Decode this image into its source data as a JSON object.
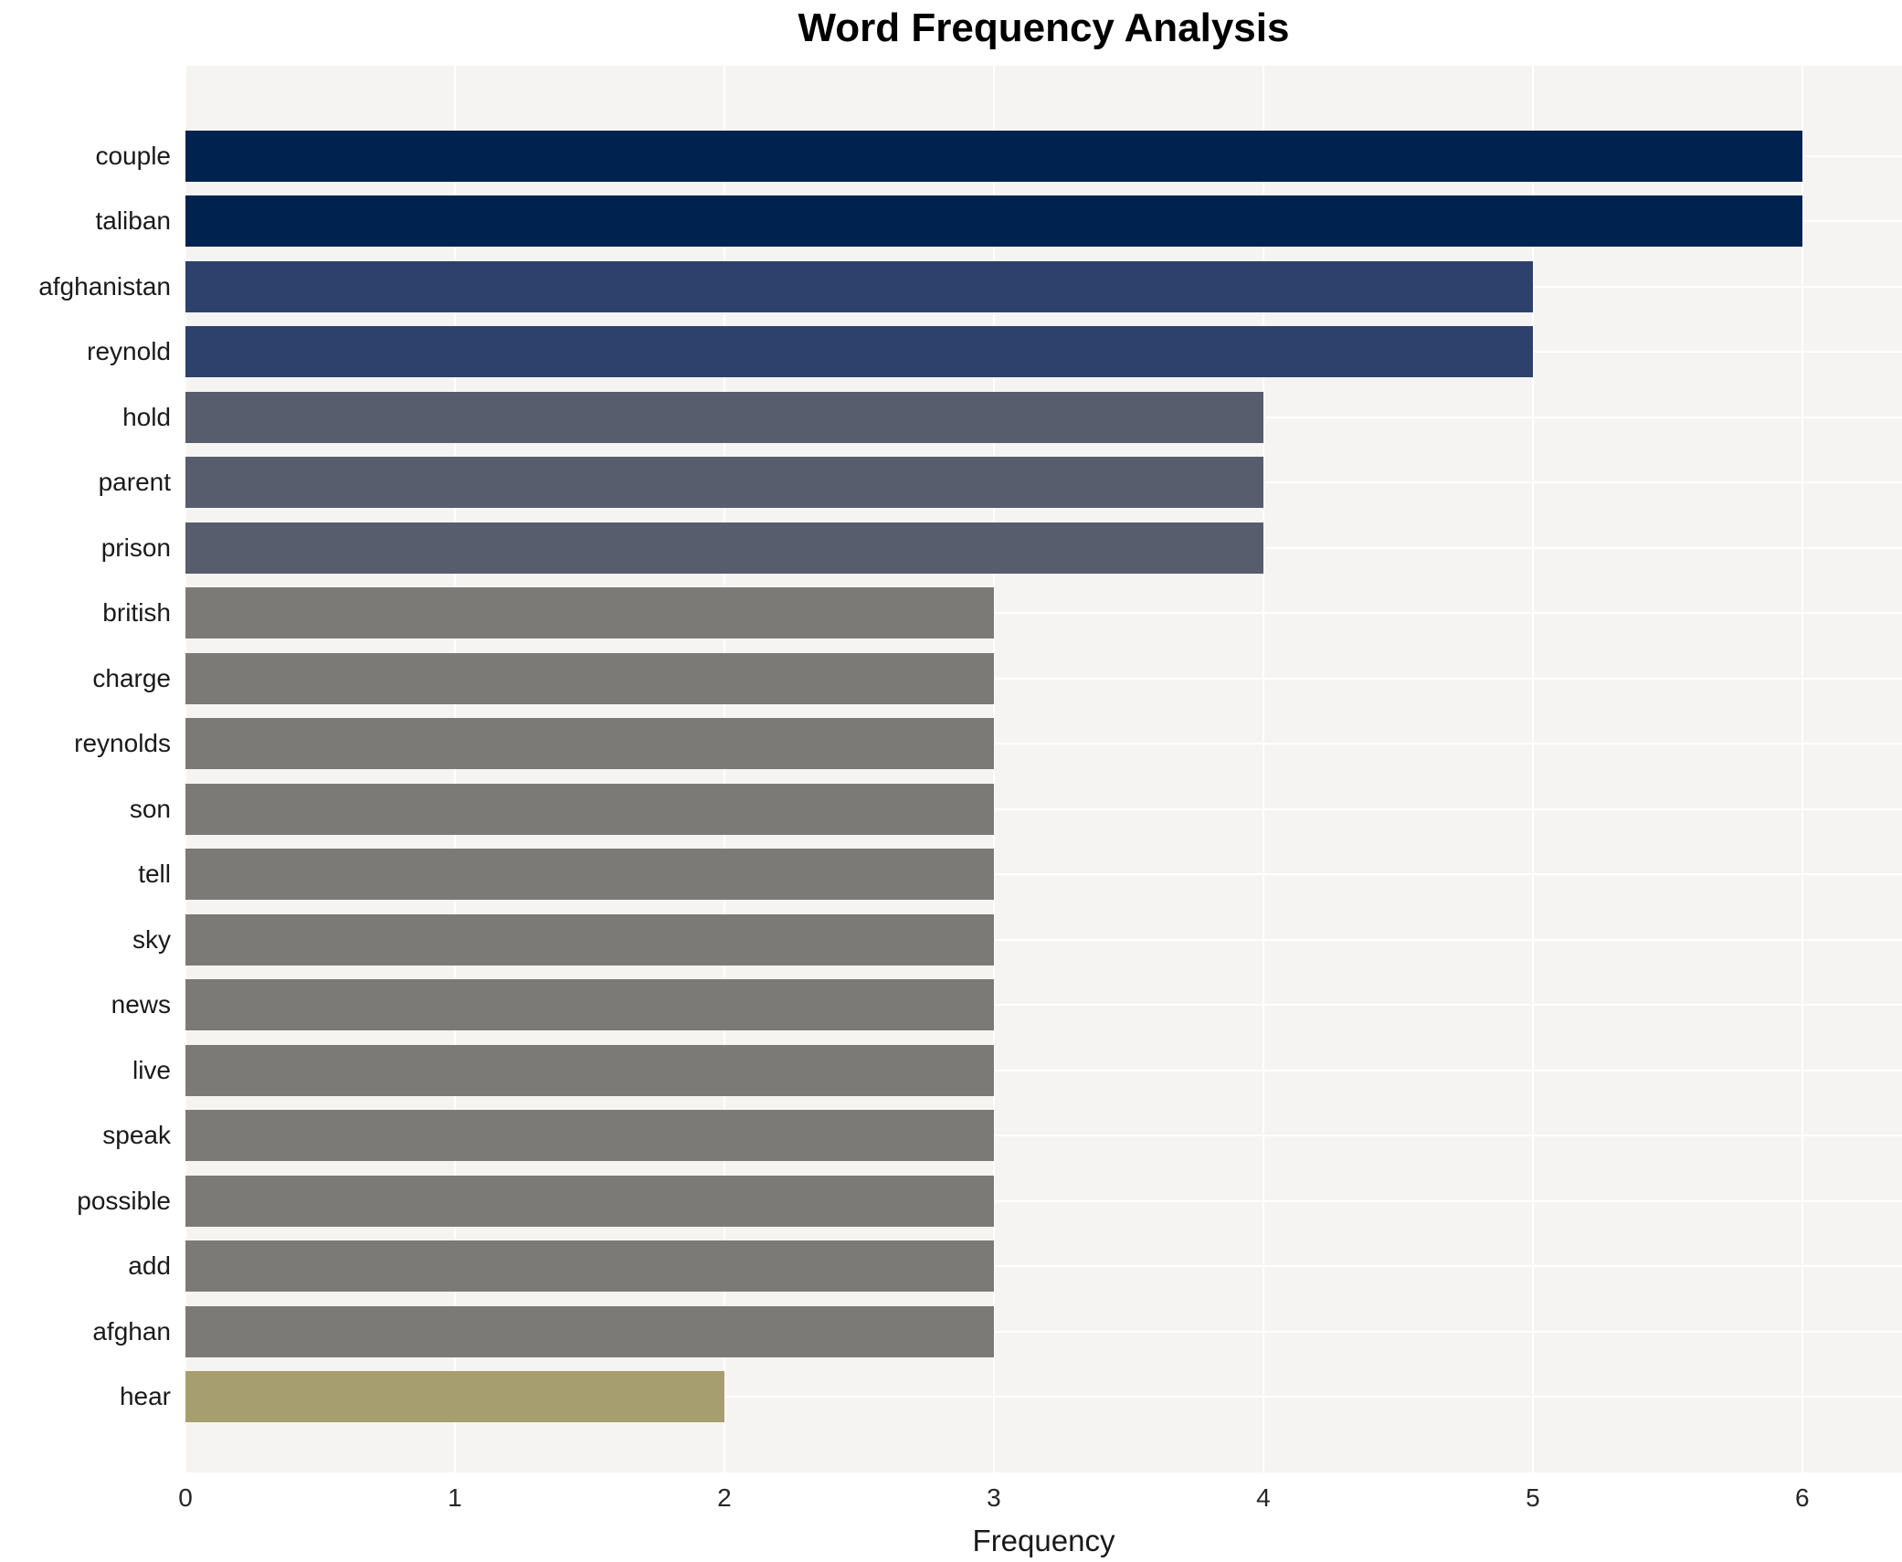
{
  "header": {
    "title": "Word Frequency Analysis"
  },
  "chart_data": {
    "type": "bar",
    "orientation": "horizontal",
    "title": "Word Frequency Analysis",
    "xlabel": "Frequency",
    "ylabel": "",
    "xlim": [
      0,
      6.37
    ],
    "xticks": [
      "0",
      "1",
      "2",
      "3",
      "4",
      "5",
      "6"
    ],
    "grid": true,
    "legend": false,
    "plot_background": "#f5f4f2",
    "gridline_color": "#ffffff",
    "label_color": "#1a1a1a",
    "tick_color": "#262626",
    "categories": [
      "couple",
      "taliban",
      "afghanistan",
      "reynold",
      "hold",
      "parent",
      "prison",
      "british",
      "charge",
      "reynolds",
      "son",
      "tell",
      "sky",
      "news",
      "live",
      "speak",
      "possible",
      "add",
      "afghan",
      "hear"
    ],
    "values": [
      6,
      6,
      5,
      5,
      4,
      4,
      4,
      3,
      3,
      3,
      3,
      3,
      3,
      3,
      3,
      3,
      3,
      3,
      3,
      2
    ],
    "bar_colors": [
      "#00224e",
      "#00224e",
      "#2e416d",
      "#2e416d",
      "#575d6d",
      "#575d6d",
      "#575d6d",
      "#7b7a77",
      "#7b7a77",
      "#7b7a77",
      "#7b7a77",
      "#7b7a77",
      "#7b7a77",
      "#7b7a77",
      "#7b7a77",
      "#7b7a77",
      "#7b7a77",
      "#7b7a77",
      "#7b7a77",
      "#a79e70"
    ],
    "value_color_map": {
      "6": "#00224e",
      "5": "#2e416d",
      "4": "#575d6d",
      "3": "#7b7a77",
      "2": "#a79e70"
    }
  }
}
